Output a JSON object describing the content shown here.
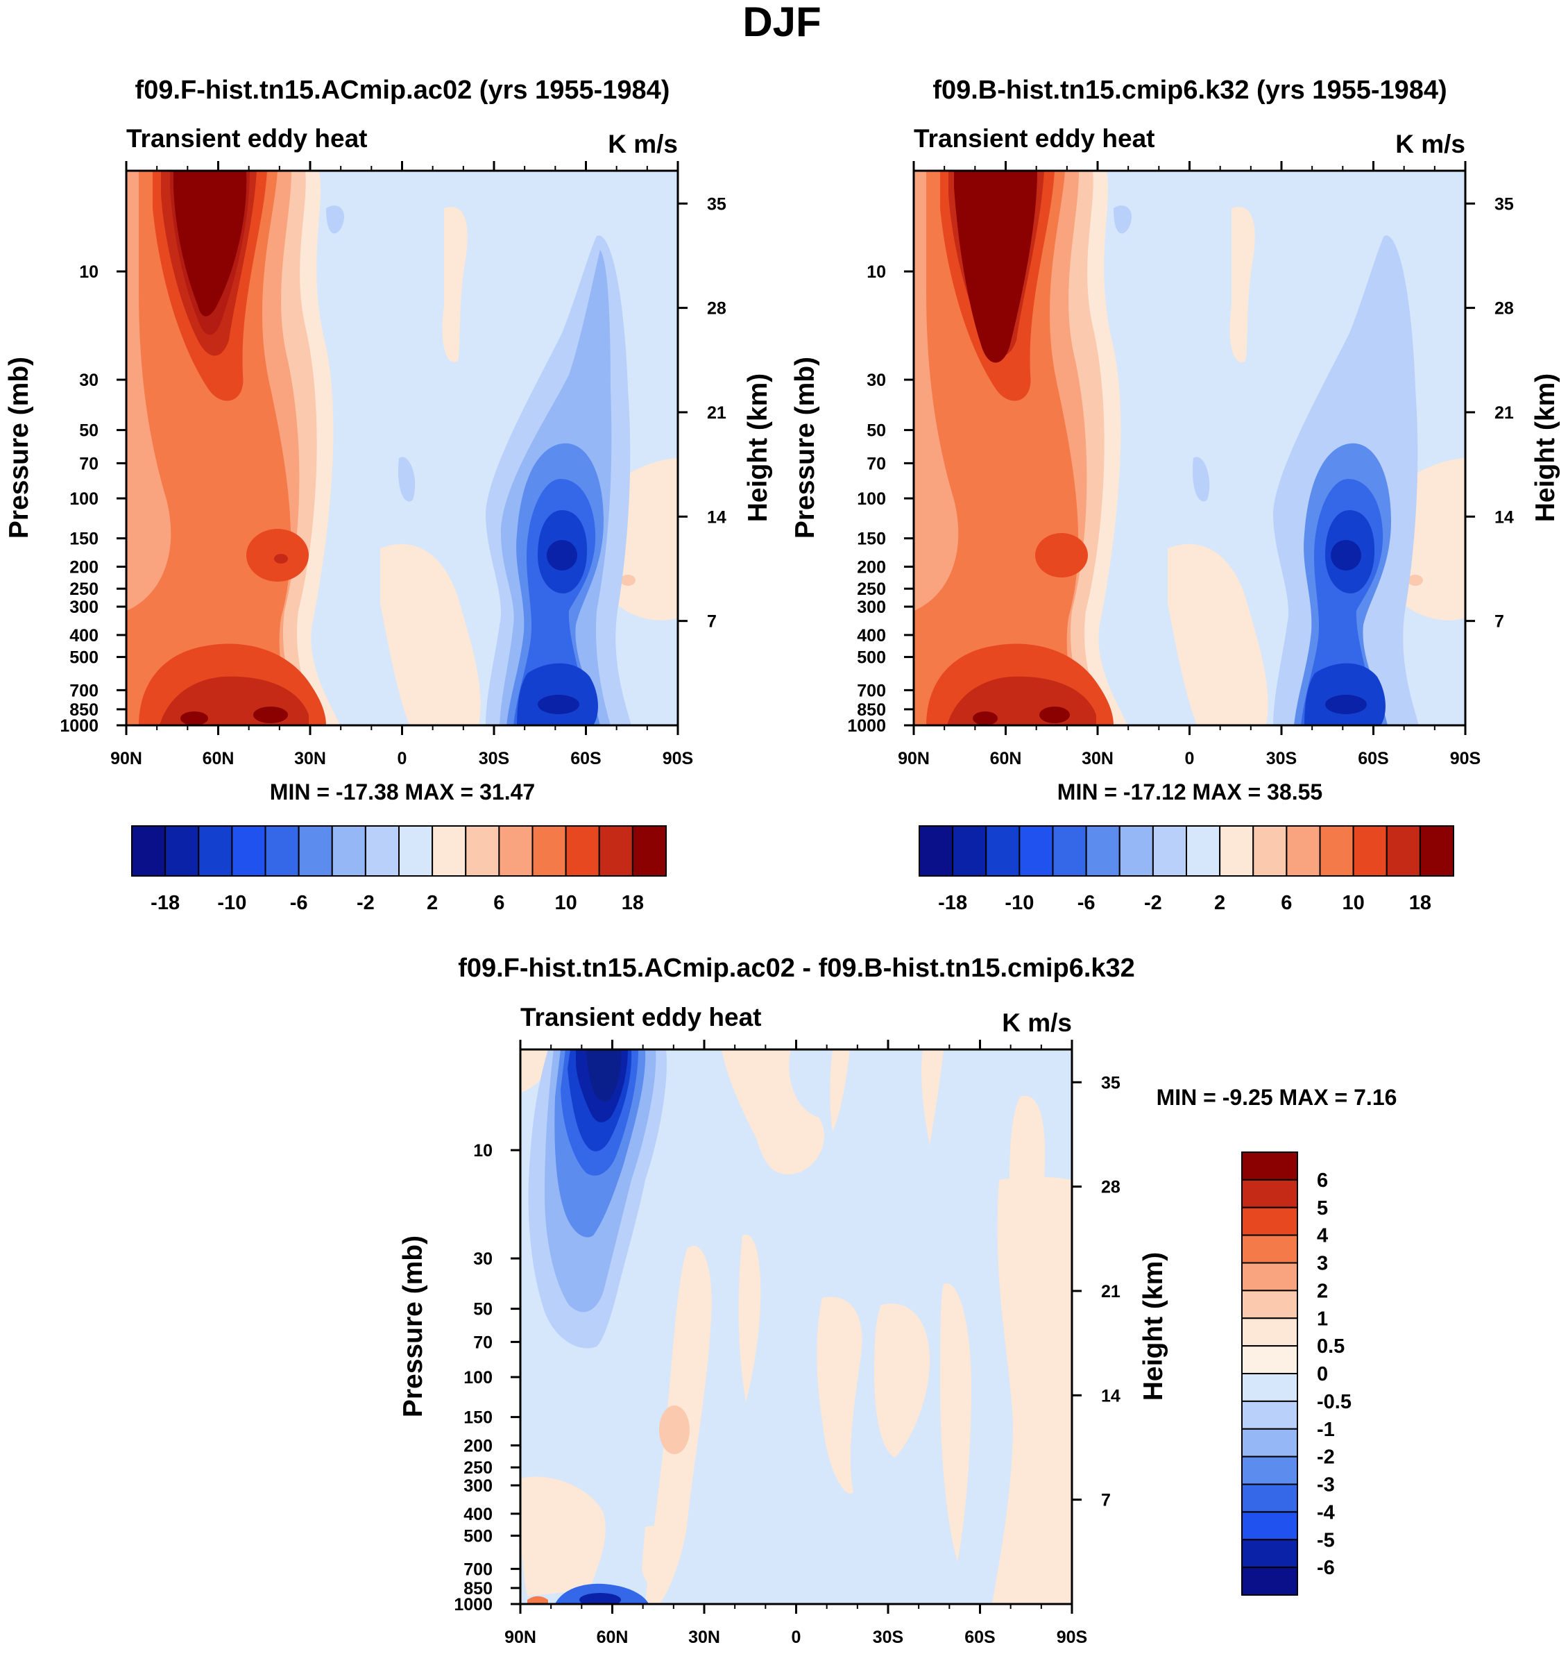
{
  "figure": {
    "title": "DJF"
  },
  "chart_data": [
    {
      "type": "heatmap",
      "title": "f09.F-hist.tn15.ACmip.ac02 (yrs 1955-1984)",
      "subtitle": "Transient eddy heat",
      "units": "K m/s",
      "ylabel": "Pressure (mb)",
      "ylabel_right": "Height (km)",
      "x_ticks": [
        "90N",
        "60N",
        "30N",
        "0",
        "30S",
        "60S",
        "90S"
      ],
      "y_ticks": [
        "10",
        "30",
        "50",
        "70",
        "100",
        "150",
        "200",
        "250",
        "300",
        "400",
        "500",
        "700",
        "850",
        "1000"
      ],
      "y_ticks_right": [
        "35",
        "28",
        "21",
        "14",
        "7"
      ],
      "stats": "MIN = -17.38  MAX =  31.47",
      "min": -17.38,
      "max": 31.47,
      "contour_levels": [
        -18,
        -14,
        -10,
        -8,
        -6,
        -4,
        -2,
        0,
        2,
        4,
        6,
        8,
        10,
        14,
        18
      ],
      "colorbar_labels": [
        "-18",
        "-10",
        "-6",
        "-2",
        "2",
        "6",
        "10",
        "18"
      ],
      "features": [
        {
          "lat": 60,
          "pressure": 10,
          "value": 31.47
        },
        {
          "lat": 45,
          "pressure": 200,
          "value": 10
        },
        {
          "lat": 60,
          "pressure": 850,
          "value": 12
        },
        {
          "lat": 38,
          "pressure": 925,
          "value": 14
        },
        {
          "lat": -50,
          "pressure": 200,
          "value": -17.38
        },
        {
          "lat": -50,
          "pressure": 850,
          "value": -13
        },
        {
          "lat": -48,
          "pressure": 40,
          "value": -5
        }
      ]
    },
    {
      "type": "heatmap",
      "title": "f09.B-hist.tn15.cmip6.k32 (yrs 1955-1984)",
      "subtitle": "Transient eddy heat",
      "units": "K m/s",
      "ylabel": "Pressure (mb)",
      "ylabel_right": "Height (km)",
      "x_ticks": [
        "90N",
        "60N",
        "30N",
        "0",
        "30S",
        "60S",
        "90S"
      ],
      "y_ticks": [
        "10",
        "30",
        "50",
        "70",
        "100",
        "150",
        "200",
        "250",
        "300",
        "400",
        "500",
        "700",
        "850",
        "1000"
      ],
      "y_ticks_right": [
        "35",
        "28",
        "21",
        "14",
        "7"
      ],
      "stats": "MIN = -17.12  MAX =  38.55",
      "min": -17.12,
      "max": 38.55,
      "contour_levels": [
        -18,
        -14,
        -10,
        -8,
        -6,
        -4,
        -2,
        0,
        2,
        4,
        6,
        8,
        10,
        14,
        18
      ],
      "colorbar_labels": [
        "-18",
        "-10",
        "-6",
        "-2",
        "2",
        "6",
        "10",
        "18"
      ],
      "features": [
        {
          "lat": 60,
          "pressure": 10,
          "value": 38.55
        },
        {
          "lat": 45,
          "pressure": 200,
          "value": 9
        },
        {
          "lat": 60,
          "pressure": 850,
          "value": 13
        },
        {
          "lat": 38,
          "pressure": 925,
          "value": 14
        },
        {
          "lat": -50,
          "pressure": 200,
          "value": -17.12
        },
        {
          "lat": -50,
          "pressure": 850,
          "value": -13
        },
        {
          "lat": -48,
          "pressure": 40,
          "value": -5
        }
      ]
    },
    {
      "type": "heatmap",
      "title": "f09.F-hist.tn15.ACmip.ac02 - f09.B-hist.tn15.cmip6.k32",
      "subtitle": "Transient eddy heat",
      "units": "K m/s",
      "ylabel": "Pressure (mb)",
      "ylabel_right": "Height (km)",
      "x_ticks": [
        "90N",
        "60N",
        "30N",
        "0",
        "30S",
        "60S",
        "90S"
      ],
      "y_ticks": [
        "10",
        "30",
        "50",
        "70",
        "100",
        "150",
        "200",
        "250",
        "300",
        "400",
        "500",
        "700",
        "850",
        "1000"
      ],
      "y_ticks_right": [
        "35",
        "28",
        "21",
        "14",
        "7"
      ],
      "stats": "MIN =  -9.25  MAX =   7.16",
      "min": -9.25,
      "max": 7.16,
      "contour_levels": [
        -6,
        -5,
        -4,
        -3,
        -2,
        -1,
        -0.5,
        0,
        0.5,
        1,
        2,
        3,
        4,
        5,
        6
      ],
      "colorbar_labels": [
        "6",
        "5",
        "4",
        "3",
        "2",
        "1",
        "0.5",
        "0",
        "-0.5",
        "-1",
        "-2",
        "-3",
        "-4",
        "-5",
        "-6"
      ],
      "features": [
        {
          "lat": 62,
          "pressure": 8,
          "value": -9.25
        },
        {
          "lat": 68,
          "pressure": 30,
          "value": -3
        },
        {
          "lat": 65,
          "pressure": 990,
          "value": -5
        },
        {
          "lat": 80,
          "pressure": 600,
          "value": 0.8
        },
        {
          "lat": 30,
          "pressure": 200,
          "value": 1.2
        },
        {
          "lat": -5,
          "pressure": 10,
          "value": 0.4
        }
      ]
    }
  ]
}
